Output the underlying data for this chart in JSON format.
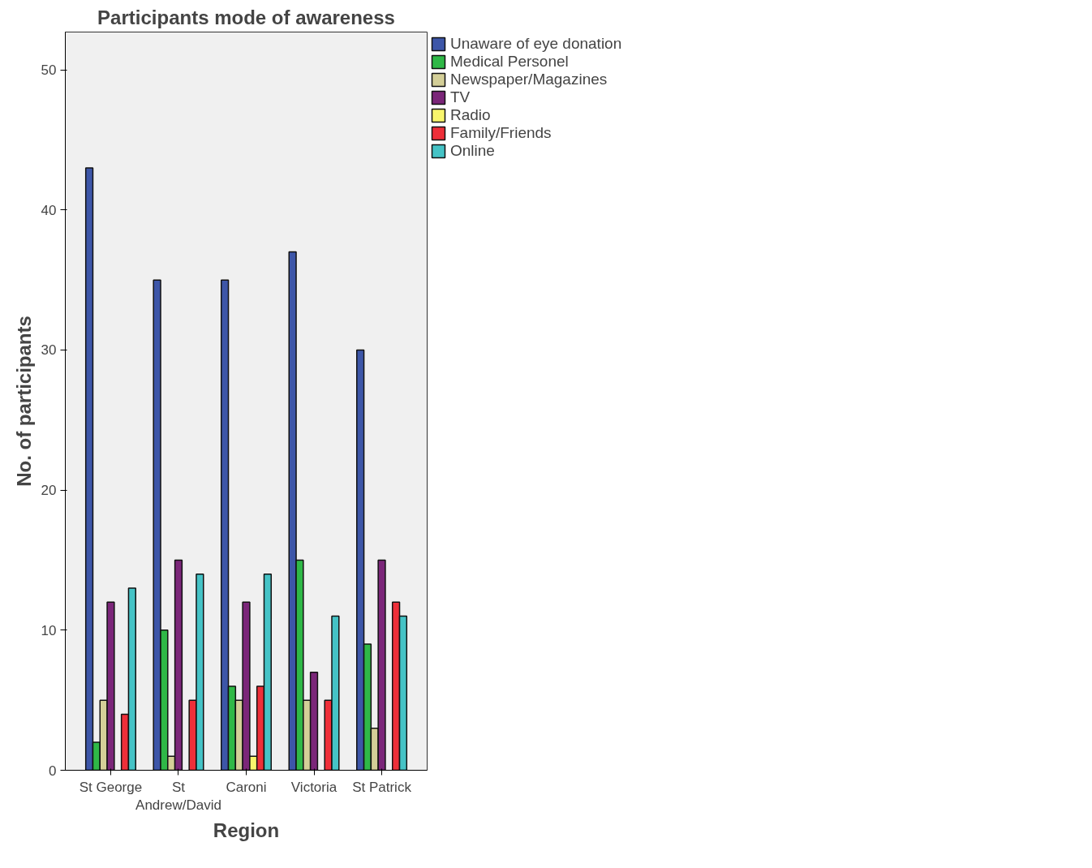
{
  "chart_data": {
    "type": "bar",
    "title": "Participants mode of awareness",
    "xlabel": "Region",
    "ylabel": "No. of participants",
    "categories": [
      "St George",
      "St Andrew/David",
      "Caroni",
      "Victoria",
      "St Patrick"
    ],
    "series": [
      {
        "name": "Unaware of eye donation",
        "color": "#3d56a8",
        "values": [
          43,
          35,
          35,
          37,
          30
        ]
      },
      {
        "name": "Medical Personel",
        "color": "#2fb847",
        "values": [
          2,
          10,
          6,
          15,
          9
        ]
      },
      {
        "name": "Newspaper/Magazines",
        "color": "#d4cf98",
        "values": [
          5,
          1,
          5,
          5,
          3
        ]
      },
      {
        "name": "TV",
        "color": "#7b2679",
        "values": [
          12,
          15,
          12,
          7,
          15
        ]
      },
      {
        "name": "Radio",
        "color": "#f8f56c",
        "values": [
          null,
          null,
          1,
          null,
          null
        ]
      },
      {
        "name": "Family/Friends",
        "color": "#ee2f39",
        "values": [
          4,
          5,
          6,
          5,
          12
        ]
      },
      {
        "name": "Online",
        "color": "#45c3c6",
        "values": [
          13,
          14,
          14,
          11,
          11
        ]
      }
    ],
    "ylim": [
      0,
      52.7
    ],
    "yticks": [
      0,
      10,
      20,
      30,
      40,
      50
    ],
    "grid": false,
    "legend": "top right"
  }
}
